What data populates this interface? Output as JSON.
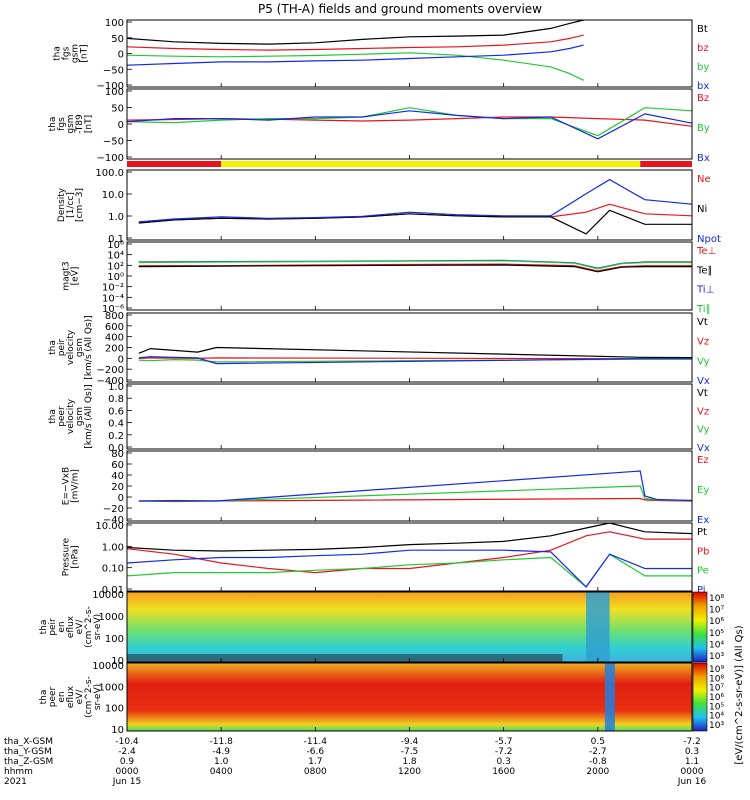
{
  "title": "P5 (TH-A) fields and ground moments overview",
  "colors": {
    "black": "#000000",
    "red": "#e8141c",
    "green": "#22c832",
    "blue": "#1428e6",
    "yellow": "#f5f000",
    "orange": "#f08c1e"
  },
  "chart_data": [
    {
      "type": "line",
      "panel": "fgs_gsm",
      "ylabel": [
        "tha",
        "fgs",
        "gsm",
        "[nT]"
      ],
      "ylim": [
        -100,
        100
      ],
      "yticks": [
        "100",
        "50",
        "0",
        "−50",
        "−100"
      ],
      "legend": [
        {
          "name": "Bt",
          "color": "#000000"
        },
        {
          "name": "bz",
          "color": "#e8141c"
        },
        {
          "name": "by",
          "color": "#22c832"
        },
        {
          "name": "bx",
          "color": "#1428e6"
        }
      ],
      "x_hours": [
        0,
        2,
        4,
        6,
        8,
        10,
        12,
        14,
        16,
        18,
        18.8,
        19.4
      ],
      "series": [
        {
          "name": "Bt",
          "values": [
            45,
            35,
            30,
            28,
            32,
            42,
            50,
            52,
            55,
            75,
            90,
            100
          ]
        },
        {
          "name": "bz",
          "values": [
            20,
            15,
            12,
            10,
            12,
            15,
            18,
            20,
            25,
            35,
            45,
            55
          ]
        },
        {
          "name": "by",
          "values": [
            -5,
            -8,
            -10,
            -8,
            -6,
            -2,
            2,
            -5,
            -20,
            -40,
            -60,
            -80
          ]
        },
        {
          "name": "bx",
          "values": [
            -35,
            -30,
            -25,
            -25,
            -22,
            -20,
            -15,
            -10,
            -5,
            5,
            15,
            25
          ]
        }
      ]
    },
    {
      "type": "line",
      "panel": "fgs_gsm_t89",
      "ylabel": [
        "tha",
        "fgs",
        "gsm",
        "-T89",
        "[nT]"
      ],
      "ylim": [
        -125,
        100
      ],
      "yticks": [
        "100",
        "50",
        "0",
        "−50",
        "−100"
      ],
      "legend": [
        {
          "name": "Bz",
          "color": "#e8141c"
        },
        {
          "name": "By",
          "color": "#22c832"
        },
        {
          "name": "Bx",
          "color": "#1428e6"
        }
      ],
      "x_hours": [
        0,
        2,
        4,
        6,
        8,
        10,
        12,
        14,
        16,
        18,
        20,
        22,
        24
      ],
      "series": [
        {
          "name": "Bz",
          "values": [
            0,
            2,
            5,
            3,
            0,
            -3,
            0,
            5,
            10,
            10,
            5,
            0,
            -20
          ]
        },
        {
          "name": "By",
          "values": [
            -5,
            -8,
            0,
            5,
            5,
            10,
            40,
            15,
            5,
            5,
            -50,
            40,
            30
          ]
        },
        {
          "name": "Bx",
          "values": [
            -5,
            5,
            5,
            0,
            10,
            10,
            30,
            15,
            5,
            10,
            -60,
            20,
            -10
          ]
        }
      ]
    },
    {
      "type": "line",
      "panel": "density",
      "scale": "log",
      "ylabel": [
        "Density",
        "[1/cc]",
        "[cm−3]"
      ],
      "ylim": [
        0.05,
        150
      ],
      "yticks": [
        "100.0",
        "10.0",
        "1.0",
        "0.1"
      ],
      "legend": [
        {
          "name": "Ne",
          "color": "#e8141c"
        },
        {
          "name": "Ni",
          "color": "#000000"
        },
        {
          "name": "Npot",
          "color": "#1428e6"
        }
      ],
      "x_hours": [
        0.5,
        2,
        4,
        6,
        8,
        10,
        12,
        14,
        16,
        18,
        19.5,
        20.5,
        22,
        24
      ],
      "series": [
        {
          "name": "Ne",
          "values": [
            0.35,
            0.5,
            0.6,
            0.55,
            0.6,
            0.7,
            1.0,
            0.8,
            0.7,
            0.7,
            1.2,
            3.0,
            1.0,
            0.8
          ]
        },
        {
          "name": "Ni",
          "values": [
            0.35,
            0.5,
            0.6,
            0.55,
            0.6,
            0.7,
            1.0,
            0.8,
            0.7,
            0.7,
            0.1,
            1.5,
            0.3,
            0.3
          ]
        },
        {
          "name": "Npot",
          "values": [
            0.4,
            0.55,
            0.7,
            0.6,
            0.65,
            0.75,
            1.2,
            0.9,
            0.8,
            0.8,
            10,
            50,
            5,
            3
          ]
        }
      ]
    },
    {
      "type": "line",
      "panel": "temperature",
      "scale": "log",
      "ylabel": [
        "magt3",
        "[eV]"
      ],
      "ylim": [
        1e-06,
        10000000
      ],
      "yticks": [
        "10⁶",
        "10⁴",
        "10²",
        "10⁰",
        "10⁻²",
        "10⁻⁴",
        "10⁻⁶"
      ],
      "legend": [
        {
          "name": "Te⊥",
          "color": "#e8141c"
        },
        {
          "name": "Te∥",
          "color": "#000000"
        },
        {
          "name": "Ti⊥",
          "color": "#1428e6"
        },
        {
          "name": "Ti∥",
          "color": "#22c832"
        }
      ],
      "x_hours": [
        0.5,
        4,
        8,
        12,
        16,
        19,
        20,
        21,
        22,
        24
      ],
      "series": [
        {
          "name": "Te⊥",
          "values": [
            300,
            300,
            400,
            500,
            600,
            300,
            30,
            200,
            300,
            300
          ]
        },
        {
          "name": "Te∥",
          "values": [
            200,
            250,
            300,
            350,
            400,
            200,
            20,
            150,
            200,
            200
          ]
        },
        {
          "name": "Ti⊥",
          "values": [
            1500,
            1800,
            2000,
            2500,
            3000,
            1000,
            100,
            800,
            1500,
            1500
          ]
        },
        {
          "name": "Ti∥",
          "values": [
            1200,
            1500,
            1800,
            2200,
            2500,
            900,
            80,
            700,
            1200,
            1200
          ]
        }
      ]
    },
    {
      "type": "line",
      "panel": "peir_velocity",
      "ylabel": [
        "tha",
        "peir",
        "velocity",
        "gsm",
        "[km/s (All Qs)]"
      ],
      "ylim": [
        -400,
        800
      ],
      "yticks": [
        "800",
        "600",
        "400",
        "200",
        "0",
        "−200",
        "−400"
      ],
      "legend": [
        {
          "name": "Vt",
          "color": "#000000"
        },
        {
          "name": "Vz",
          "color": "#e8141c"
        },
        {
          "name": "Vy",
          "color": "#22c832"
        },
        {
          "name": "Vx",
          "color": "#1428e6"
        }
      ],
      "x_hours": [
        0.5,
        1,
        2,
        3,
        3.8,
        21.8,
        24
      ],
      "series": [
        {
          "name": "Vt",
          "values": [
            100,
            180,
            150,
            120,
            200,
            30,
            25
          ]
        },
        {
          "name": "Vz",
          "values": [
            10,
            20,
            15,
            10,
            20,
            5,
            5
          ]
        },
        {
          "name": "Vy",
          "values": [
            -20,
            -30,
            -10,
            -20,
            -50,
            -5,
            -5
          ]
        },
        {
          "name": "Vx",
          "values": [
            20,
            40,
            30,
            20,
            -80,
            5,
            5
          ]
        }
      ]
    },
    {
      "type": "line",
      "panel": "peer_velocity",
      "ylabel": [
        "tha",
        "peer",
        "velocity",
        "gsm",
        "[km/s (All Qs)]"
      ],
      "ylim": [
        0,
        1
      ],
      "yticks": [
        "1.0",
        "0.8",
        "0.6",
        "0.4",
        "0.2",
        "0.0"
      ],
      "legend": [
        {
          "name": "Vt",
          "color": "#000000"
        },
        {
          "name": "Vz",
          "color": "#e8141c"
        },
        {
          "name": "Vy",
          "color": "#22c832"
        },
        {
          "name": "Vx",
          "color": "#1428e6"
        }
      ],
      "x_hours": [],
      "series": []
    },
    {
      "type": "line",
      "panel": "efield",
      "ylabel": [
        "E=−VxB",
        "[mV/m]"
      ],
      "ylim": [
        -40,
        100
      ],
      "yticks": [
        "80",
        "60",
        "40",
        "20",
        "0",
        "−20",
        "−40"
      ],
      "legend": [
        {
          "name": "Ez",
          "color": "#e8141c"
        },
        {
          "name": "Ey",
          "color": "#22c832"
        },
        {
          "name": "Ex",
          "color": "#1428e6"
        }
      ],
      "x_hours": [
        0.5,
        2,
        3.8,
        21.8,
        22,
        22.5,
        24
      ],
      "series": [
        {
          "name": "Ez",
          "values": [
            0,
            1,
            0,
            5,
            2,
            1,
            0
          ]
        },
        {
          "name": "Ey",
          "values": [
            0,
            -1,
            0,
            30,
            5,
            2,
            1
          ]
        },
        {
          "name": "Ex",
          "values": [
            0,
            0,
            0,
            60,
            10,
            3,
            1
          ]
        }
      ]
    },
    {
      "type": "line",
      "panel": "pressure",
      "scale": "log",
      "ylabel": [
        "Pressure",
        "[nPa]"
      ],
      "ylim": [
        0.003,
        15
      ],
      "yticks": [
        "10.00",
        "1.00",
        "0.10",
        "0.01"
      ],
      "legend": [
        {
          "name": "Pt",
          "color": "#000000"
        },
        {
          "name": "Pb",
          "color": "#e8141c"
        },
        {
          "name": "Pe",
          "color": "#22c832"
        },
        {
          "name": "Pi",
          "color": "#1428e6"
        }
      ],
      "x_hours": [
        0,
        2,
        4,
        6,
        8,
        10,
        12,
        14,
        16,
        18,
        19.5,
        20.5,
        22,
        24
      ],
      "series": [
        {
          "name": "Pt",
          "values": [
            0.7,
            0.5,
            0.45,
            0.5,
            0.55,
            0.7,
            1.0,
            1.2,
            1.5,
            3,
            8,
            15,
            5,
            4
          ]
        },
        {
          "name": "Pb",
          "values": [
            0.6,
            0.3,
            0.1,
            0.05,
            0.03,
            0.05,
            0.05,
            0.1,
            0.2,
            0.5,
            3,
            5,
            2,
            2
          ]
        },
        {
          "name": "Pe",
          "values": [
            0.02,
            0.03,
            0.03,
            0.03,
            0.04,
            0.05,
            0.08,
            0.1,
            0.15,
            0.2,
            0.005,
            0.3,
            0.02,
            0.02
          ]
        },
        {
          "name": "Pi",
          "values": [
            0.1,
            0.15,
            0.2,
            0.2,
            0.25,
            0.3,
            0.5,
            0.5,
            0.5,
            0.4,
            0.005,
            0.3,
            0.05,
            0.05
          ]
        }
      ]
    },
    {
      "type": "heatmap",
      "panel": "peir_eflux",
      "ylabel": [
        "tha",
        "peir",
        "en",
        "eflux",
        "eV/",
        "(cm^2-s-",
        "sr-eV)"
      ],
      "yticks": [
        "10000",
        "1000",
        "100",
        "10"
      ],
      "colorbar_ticks": [
        "10⁸",
        "10⁷",
        "10⁶",
        "10⁵",
        "10⁴",
        "10³"
      ]
    },
    {
      "type": "heatmap",
      "panel": "peer_eflux",
      "ylabel": [
        "tha",
        "peer",
        "en",
        "eflux",
        "eV/",
        "(cm^2-s-",
        "sr-eV)"
      ],
      "yticks": [
        "10000",
        "1000",
        "100",
        "10"
      ],
      "colorbar_ticks": [
        "10⁹",
        "10⁸",
        "10⁷",
        "10⁶",
        "10⁵",
        "10⁴",
        "10³"
      ],
      "colorbar_label": "[eV/(cm^2-s-sr-eV)] (All Qs)"
    }
  ],
  "xaxis": {
    "row_labels": [
      "tha_X-GSM",
      "tha_Y-GSM",
      "tha_Z-GSM",
      "hhmm",
      "2021"
    ],
    "columns": [
      {
        "hour": 0,
        "vals": [
          "-10.4",
          "-2.4",
          "0.9",
          "0000",
          "Jun 15"
        ]
      },
      {
        "hour": 4,
        "vals": [
          "-11.8",
          "-4.9",
          "1.0",
          "0400",
          ""
        ]
      },
      {
        "hour": 8,
        "vals": [
          "-11.4",
          "-6.6",
          "1.7",
          "0800",
          ""
        ]
      },
      {
        "hour": 12,
        "vals": [
          "-9.4",
          "-7.5",
          "1.8",
          "1200",
          ""
        ]
      },
      {
        "hour": 16,
        "vals": [
          "-5.7",
          "-7.2",
          "0.3",
          "1600",
          ""
        ]
      },
      {
        "hour": 20,
        "vals": [
          "0.5",
          "-2.7",
          "-0.8",
          "2000",
          ""
        ]
      },
      {
        "hour": 24,
        "vals": [
          "-7.2",
          "0.3",
          "1.1",
          "0000",
          "Jun 16"
        ]
      }
    ]
  },
  "mode_bar": [
    {
      "from": 0,
      "to": 4,
      "color": "#e8141c"
    },
    {
      "from": 4,
      "to": 21.8,
      "color": "#f5f000"
    },
    {
      "from": 21.8,
      "to": 24,
      "color": "#e8141c"
    }
  ]
}
